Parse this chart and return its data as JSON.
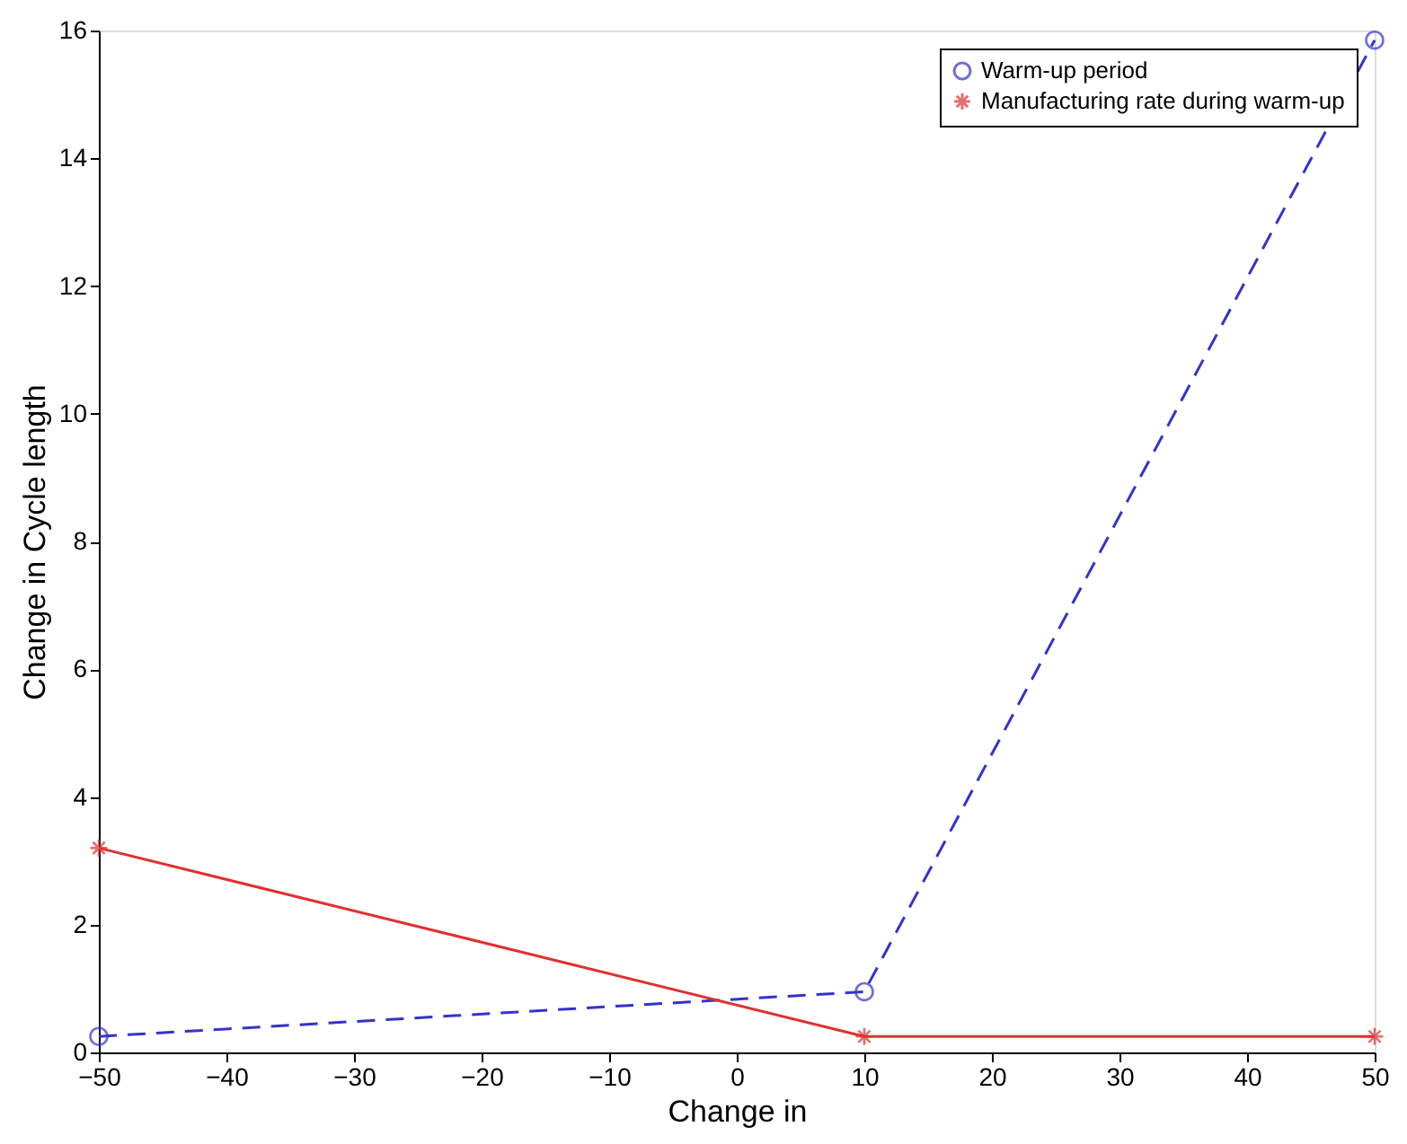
{
  "chart_data": {
    "type": "line",
    "xlabel": "Change in",
    "ylabel": "Change in Cycle length",
    "x": [
      -50,
      10,
      50
    ],
    "series": [
      {
        "name": "Warm-up period",
        "color": "#3333cc",
        "values": [
          0.25,
          0.95,
          15.85
        ],
        "marker": "circle",
        "line_style": "dashed"
      },
      {
        "name": "Manufacturing rate during warm-up",
        "color": "#e03030",
        "values": [
          3.2,
          0.25,
          0.25
        ],
        "marker": "cross",
        "line_style": "solid"
      }
    ],
    "xlim": [
      -50,
      50
    ],
    "xticks": [
      -50,
      -40,
      -30,
      -20,
      -10,
      0,
      10,
      20,
      30,
      40,
      50
    ],
    "ylim": [
      0,
      16
    ],
    "yticks": [
      0,
      2,
      4,
      6,
      8,
      10,
      12,
      14,
      16
    ],
    "grid": false,
    "legend": "top right"
  }
}
